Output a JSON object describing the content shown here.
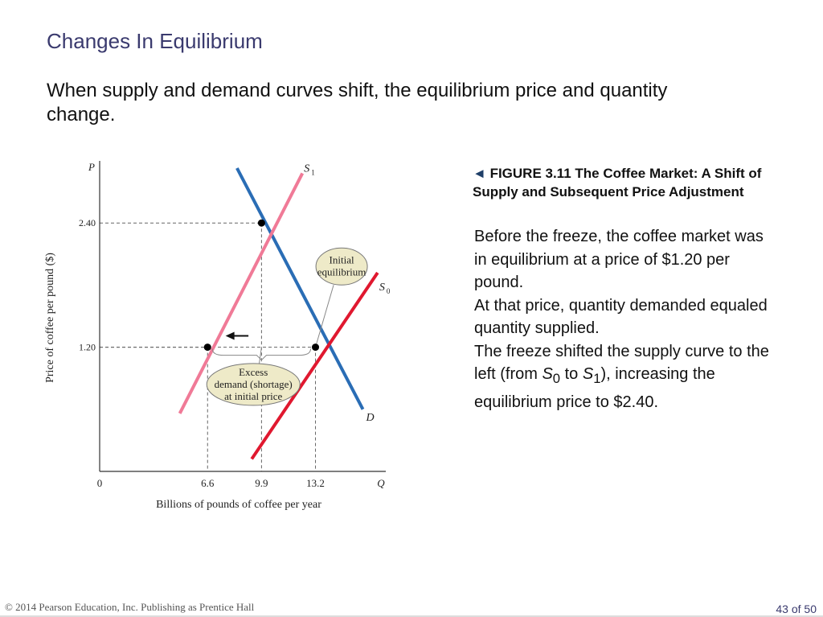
{
  "slide": {
    "title": "Changes In Equilibrium",
    "intro": "When supply and demand curves shift, the equilibrium price and quantity change."
  },
  "caption": {
    "marker": "◄",
    "label": "FIGURE 3.11",
    "title": "The Coffee Market: A Shift of Supply and Subsequent Price Adjustment",
    "body": {
      "p1": "Before the freeze, the coffee market was in equilibrium at a price of $1.20 per pound.",
      "p2": "At that price, quantity demanded equaled quantity supplied.",
      "p3_a": "The freeze shifted the supply curve to the left (from ",
      "p3_s0": "S",
      "p3_s0_sub": "0",
      "p3_mid": " to ",
      "p3_s1": "S",
      "p3_s1_sub": "1",
      "p3_b": "), increasing the equilibrium price to $2.40."
    }
  },
  "footer": {
    "copyright": "© 2014 Pearson Education, Inc. Publishing as Prentice Hall",
    "page": "43 of 50"
  },
  "chart_data": {
    "type": "line",
    "xlabel": "Billions of pounds of coffee per year",
    "ylabel": "Price of coffee per pound ($)",
    "x_axis_letter": "Q",
    "y_axis_letter": "P",
    "origin_label": "0",
    "xlim": [
      0,
      17.5
    ],
    "ylim": [
      0,
      3.0
    ],
    "x_ticks": [
      {
        "value": 6.6,
        "label": "6.6"
      },
      {
        "value": 9.9,
        "label": "9.9"
      },
      {
        "value": 13.2,
        "label": "13.2"
      }
    ],
    "y_ticks": [
      {
        "value": 1.2,
        "label": "1.20"
      },
      {
        "value": 2.4,
        "label": "2.40"
      }
    ],
    "series": [
      {
        "name": "D",
        "sub": "",
        "color": "#2a6db5",
        "points": [
          [
            8.4,
            2.93
          ],
          [
            16.1,
            0.6
          ]
        ]
      },
      {
        "name": "S",
        "sub": "1",
        "color": "#f07a97",
        "points": [
          [
            4.9,
            0.56
          ],
          [
            12.4,
            2.88
          ]
        ]
      },
      {
        "name": "S",
        "sub": "0",
        "color": "#e0182f",
        "points": [
          [
            9.3,
            0.12
          ],
          [
            17.0,
            1.92
          ]
        ]
      }
    ],
    "equilibria": [
      {
        "x": 9.9,
        "y": 2.4
      },
      {
        "x": 6.6,
        "y": 1.2
      },
      {
        "x": 13.2,
        "y": 1.2
      }
    ],
    "annotations": [
      {
        "name": "initial-equilibrium",
        "lines": [
          "Initial",
          "equilibrium"
        ],
        "x": 14.8,
        "y": 1.98,
        "target_x": 13.2,
        "target_y": 1.2
      },
      {
        "name": "excess-demand",
        "lines": [
          "Excess",
          "demand (shortage)",
          "at initial price"
        ],
        "x": 9.4,
        "y": 0.84,
        "target_x": 9.9,
        "target_y": 1.2
      }
    ],
    "arrow": {
      "from_x": 9.1,
      "to_x": 7.7,
      "y": 1.31
    }
  }
}
